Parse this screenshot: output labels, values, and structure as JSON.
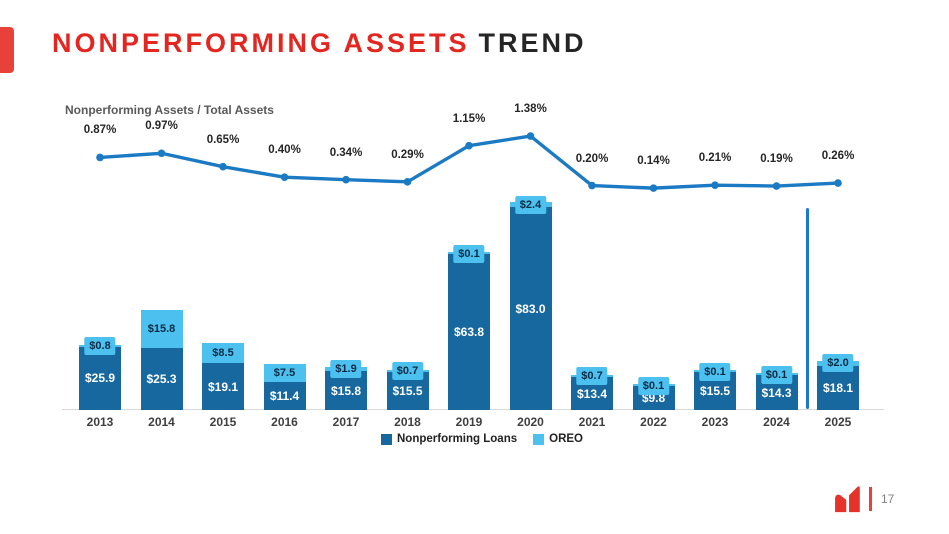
{
  "slide": {
    "title_highlight": "NONPERFORMING ASSETS",
    "title_rest": "TREND",
    "page_number": "17"
  },
  "chart_data": {
    "type": "bar",
    "subtype": "stacked-bars-with-line",
    "title": "Nonperforming Assets / Total Assets",
    "categories": [
      "2013",
      "2014",
      "2015",
      "2016",
      "2017",
      "2018",
      "2019",
      "2020",
      "2021",
      "2022",
      "2023",
      "2024",
      "2025"
    ],
    "series": [
      {
        "name": "Nonperforming Loans",
        "values": [
          25.9,
          25.3,
          19.1,
          11.4,
          15.8,
          15.5,
          63.8,
          83.0,
          13.4,
          9.8,
          15.5,
          14.3,
          18.1
        ],
        "labels": [
          "$25.9",
          "$25.3",
          "$19.1",
          "$11.4",
          "$15.8",
          "$15.5",
          "$63.8",
          "$83.0",
          "$13.4",
          "$9.8",
          "$15.5",
          "$14.3",
          "$18.1"
        ]
      },
      {
        "name": "OREO",
        "values": [
          0.8,
          15.8,
          8.5,
          7.5,
          1.9,
          0.7,
          0.1,
          2.4,
          0.7,
          0.1,
          0.1,
          0.1,
          2.0
        ],
        "labels": [
          "$0.8",
          "$15.8",
          "$8.5",
          "$7.5",
          "$1.9",
          "$0.7",
          "$0.1",
          "$2.4",
          "$0.7",
          "$0.1",
          "$0.1",
          "$0.1",
          "$2.0"
        ]
      }
    ],
    "line_series": {
      "name": "Nonperforming Assets / Total Assets",
      "values": [
        0.87,
        0.97,
        0.65,
        0.4,
        0.34,
        0.29,
        1.15,
        1.38,
        0.2,
        0.14,
        0.21,
        0.19,
        0.26
      ],
      "labels": [
        "0.87%",
        "0.97%",
        "0.65%",
        "0.40%",
        "0.34%",
        "0.29%",
        "1.15%",
        "1.38%",
        "0.20%",
        "0.14%",
        "0.21%",
        "0.19%",
        "0.26%"
      ]
    },
    "separator_after_category": "2024",
    "legend_position": "bottom-center",
    "grid": false,
    "colors": {
      "npl_bar": "#17689e",
      "oreo_bar": "#4cc0ef",
      "line": "#1b7ac4",
      "accent_red": "#e32620"
    }
  }
}
